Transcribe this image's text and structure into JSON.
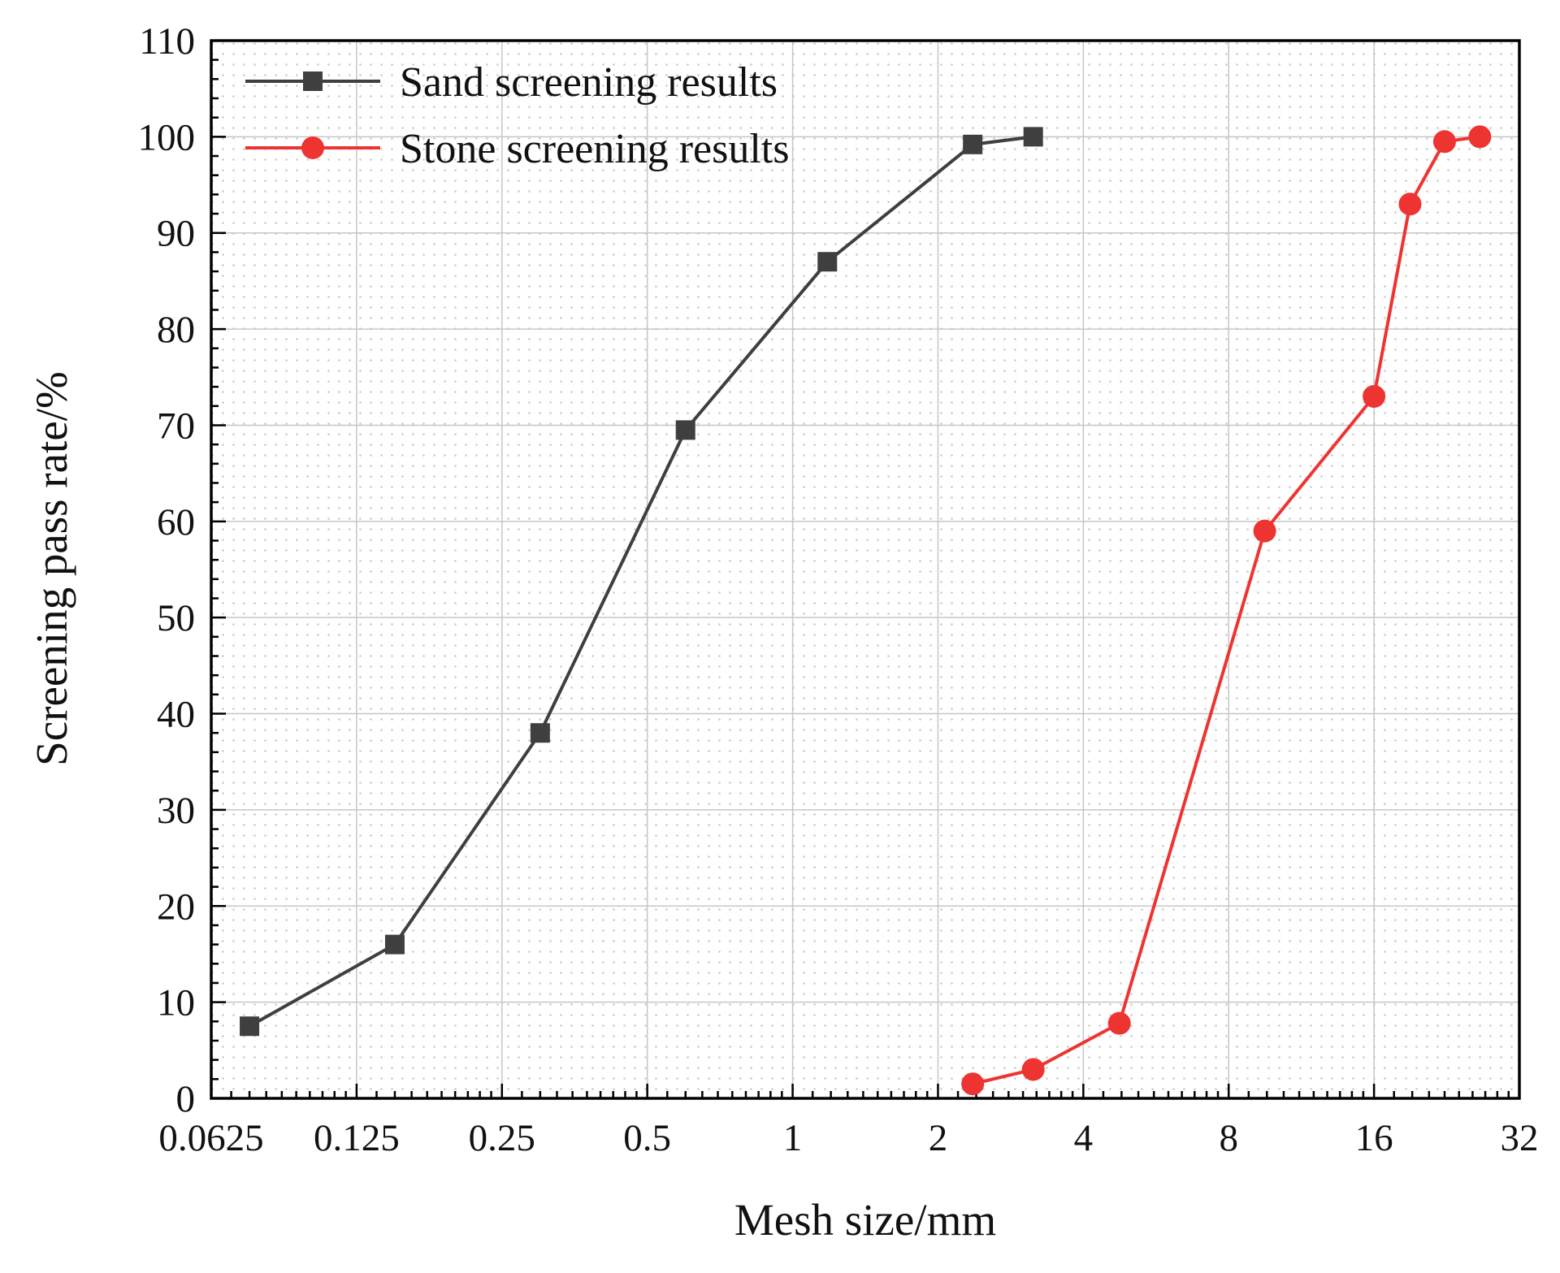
{
  "figure": {
    "background": "#ffffff"
  },
  "chart_data": {
    "type": "line",
    "title": "",
    "xlabel": "Mesh size/mm",
    "ylabel": "Screening pass rate/%",
    "x_scale": "log2",
    "xlim": [
      0.0625,
      32
    ],
    "ylim": [
      0,
      110
    ],
    "x_ticks": [
      0.0625,
      0.125,
      0.25,
      0.5,
      1,
      2,
      4,
      8,
      16,
      32
    ],
    "x_tick_labels": [
      "0.0625",
      "0.125",
      "0.25",
      "0.5",
      "1",
      "2",
      "4",
      "8",
      "16",
      "32"
    ],
    "y_ticks": [
      0,
      10,
      20,
      30,
      40,
      50,
      60,
      70,
      80,
      90,
      100,
      110
    ],
    "grid": true,
    "minor_grid_style": "dotted",
    "legend_position": "top-left",
    "series": [
      {
        "name": "Sand screening results",
        "color": "#3f3f3f",
        "marker": "square",
        "x": [
          0.075,
          0.15,
          0.3,
          0.6,
          1.18,
          2.36,
          3.15
        ],
        "y": [
          7.5,
          16,
          38,
          69.5,
          87,
          99.2,
          100
        ]
      },
      {
        "name": "Stone screening results",
        "color": "#ee3431",
        "marker": "circle",
        "x": [
          2.36,
          3.15,
          4.75,
          9.5,
          16,
          19,
          22.4,
          26.5
        ],
        "y": [
          1.5,
          3,
          7.8,
          59,
          73,
          93,
          99.5,
          100
        ]
      }
    ]
  }
}
